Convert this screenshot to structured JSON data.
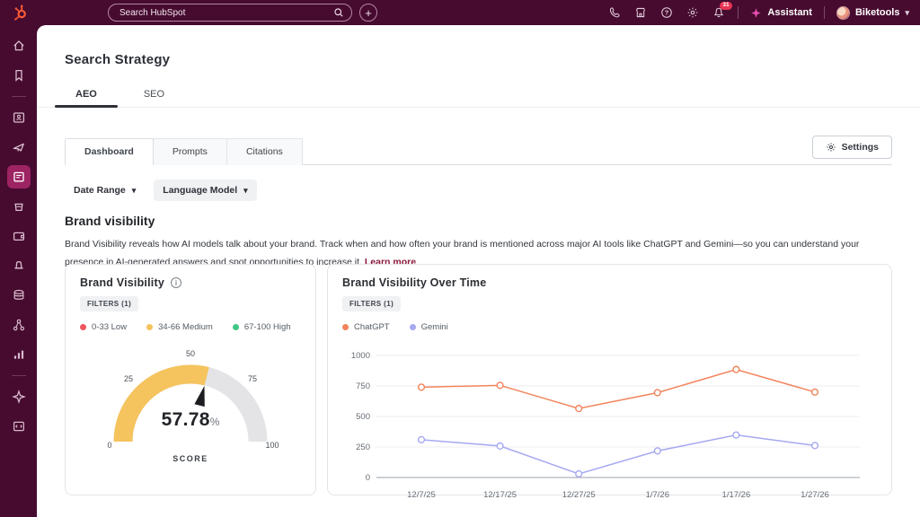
{
  "topbar": {
    "search_placeholder": "Search HubSpot",
    "notification_count": "31",
    "assistant_label": "Assistant",
    "account_label": "Biketools",
    "icons": [
      "hubspot-logo",
      "search",
      "add",
      "phone",
      "marketplace",
      "help",
      "settings",
      "notifications",
      "sparkle",
      "account-caret"
    ]
  },
  "sidebar": {
    "items": [
      "home",
      "bookmarks",
      "contacts",
      "marketing",
      "content",
      "commerce",
      "payments",
      "automations",
      "data",
      "workflows",
      "reports",
      "ai",
      "developer"
    ],
    "active_item": "content"
  },
  "page": {
    "title": "Search Strategy",
    "tabs": [
      {
        "label": "AEO"
      },
      {
        "label": "SEO"
      }
    ],
    "active_tab": "AEO"
  },
  "toolbar": {
    "tabs": [
      "Dashboard",
      "Prompts",
      "Citations"
    ],
    "active_tab": "Dashboard",
    "settings_label": "Settings",
    "filters": [
      "Date Range",
      "Language Model"
    ]
  },
  "section": {
    "heading": "Brand visibility",
    "description": "Brand Visibility reveals how AI models talk about your brand. Track when and how often your brand is mentioned across major AI tools like ChatGPT and Gemini—so you can understand your presence in AI-generated answers and spot opportunities to increase it. ",
    "learn_more": "Learn more"
  },
  "cards": {
    "gauge": {
      "title": "Brand Visibility",
      "filters_label": "FILTERS (1)",
      "legend": [
        {
          "label": "0-33 Low",
          "color": "#f0545c"
        },
        {
          "label": "34-66 Medium",
          "color": "#f5c45e"
        },
        {
          "label": "67-100 High",
          "color": "#3ec786"
        }
      ],
      "value": 57.78,
      "value_display": "57.78",
      "unit": "%",
      "caption": "SCORE",
      "ticks": [
        0,
        25,
        50,
        75,
        100
      ],
      "fill_color": "#f5c45e",
      "track_color": "#e4e4e7",
      "needle_color": "#1c1d20"
    },
    "timeseries": {
      "title": "Brand Visibility Over Time",
      "filters_label": "FILTERS (1)"
    }
  },
  "chart_data": {
    "type": "line",
    "title": "Brand Visibility Over Time",
    "categories": [
      "12/7/25",
      "12/17/25",
      "12/27/25",
      "1/7/26",
      "1/17/26",
      "1/27/26"
    ],
    "series": [
      {
        "name": "ChatGPT",
        "color": "#f2845c",
        "values": [
          740,
          755,
          565,
          695,
          885,
          700
        ]
      },
      {
        "name": "Gemini",
        "color": "#a5a9f0",
        "values": [
          310,
          258,
          30,
          218,
          348,
          262
        ]
      }
    ],
    "ylim": [
      0,
      1000
    ],
    "yticks": [
      0,
      250,
      500,
      750,
      1000
    ],
    "grid": true,
    "legend_position": "top-left",
    "marker": "open-circle"
  },
  "colors": {
    "chrome_bg": "#470b30",
    "active_nav": "#9d2363",
    "badge": "#ea3352",
    "assistant_sparkle": "#e84fb0",
    "logo": "#ff5c35",
    "link": "#8c1a3c",
    "tab_underline": "#2e3038"
  }
}
